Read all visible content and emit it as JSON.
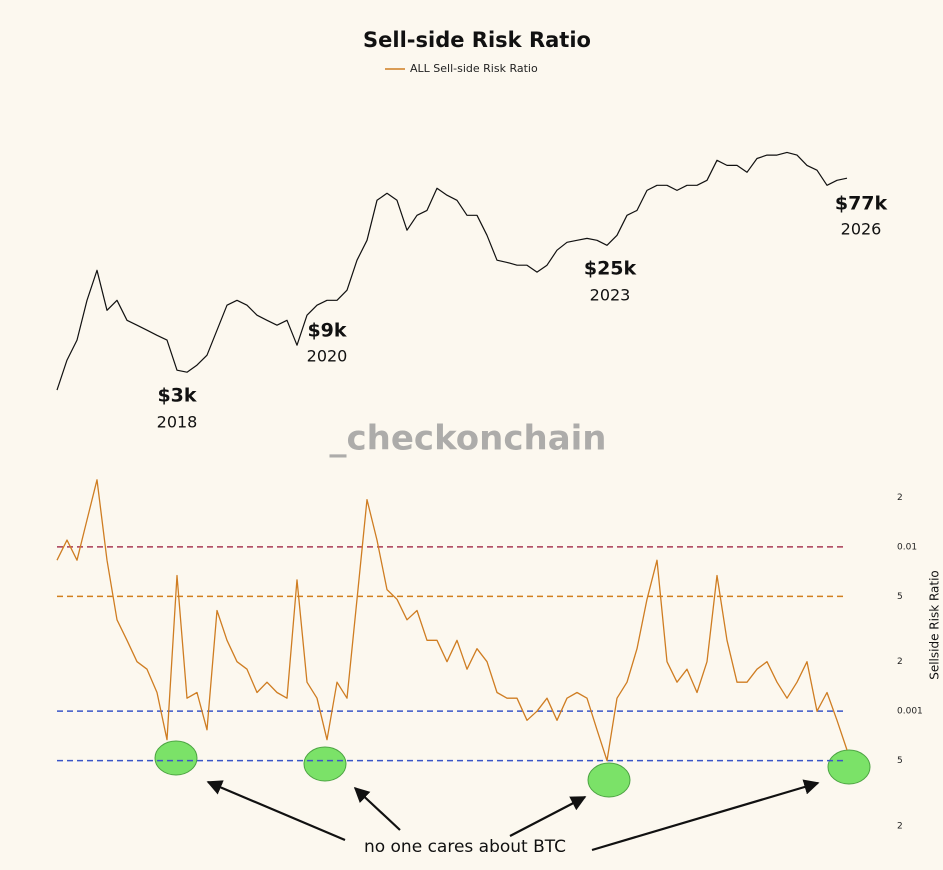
{
  "chart_data": {
    "type": "line",
    "title": "Sell-side Risk Ratio",
    "ylabel": "Sellside Risk Ratio",
    "watermark": "_checkonchain",
    "ylog": true,
    "y2log": true,
    "ylim": [
      0.0002,
      0.04
    ],
    "yticks": [
      {
        "value": 0.02,
        "label": "2"
      },
      0.01,
      {
        "value": 0.005,
        "label": "5"
      },
      {
        "value": 0.002,
        "label": "2"
      },
      0.001,
      {
        "value": 0.0005,
        "label": "5"
      },
      {
        "value": 0.0002,
        "label": "2"
      }
    ],
    "y2lim": [
      1000,
      150000
    ],
    "hlines": [
      {
        "value": 0.01,
        "color": "#a83a55"
      },
      {
        "value": 0.005,
        "color": "#d2801e"
      },
      {
        "value": 0.001,
        "color": "#3a55c8"
      },
      {
        "value": 0.0005,
        "color": "#3a55c8"
      }
    ],
    "annotations": [
      "$3k",
      "2018",
      "$9k",
      "2020",
      "$25k",
      "2023",
      "$77k",
      "2026",
      "no one cares about BTC"
    ],
    "series": [
      {
        "name": "ALL Sell-side Risk Ratio",
        "color": "#cf7d22",
        "values": [
          0.0083,
          0.011,
          0.0083,
          0.0146,
          0.0256,
          0.0083,
          0.0036,
          0.0027,
          0.002,
          0.0018,
          0.0013,
          0.00067,
          0.0067,
          0.0012,
          0.0013,
          0.00077,
          0.0041,
          0.0027,
          0.002,
          0.0018,
          0.0013,
          0.0015,
          0.0013,
          0.0012,
          0.0063,
          0.0015,
          0.0012,
          0.00067,
          0.0015,
          0.0012,
          0.0048,
          0.0194,
          0.011,
          0.0055,
          0.0048,
          0.0036,
          0.0041,
          0.0027,
          0.0027,
          0.002,
          0.0027,
          0.0018,
          0.0024,
          0.002,
          0.0013,
          0.0012,
          0.0012,
          0.00088,
          0.001,
          0.0012,
          0.00088,
          0.0012,
          0.0013,
          0.0012,
          0.00077,
          0.0005,
          0.0012,
          0.0015,
          0.0024,
          0.0048,
          0.0083,
          0.002,
          0.0015,
          0.0018,
          0.0013,
          0.002,
          0.0067,
          0.0027,
          0.0015,
          0.0015,
          0.0018,
          0.002,
          0.0015,
          0.0012,
          0.0015,
          0.002,
          0.001,
          0.0013,
          0.00088,
          0.00058
        ]
      },
      {
        "color": "#111111",
        "axis": "y2",
        "values": [
          2540,
          4120,
          5690,
          10800,
          17500,
          9200,
          10800,
          7830,
          7230,
          6670,
          6150,
          5690,
          3500,
          3390,
          3800,
          4460,
          6670,
          9980,
          10800,
          9980,
          8490,
          7830,
          7230,
          7830,
          5240,
          8490,
          9980,
          10800,
          10800,
          12700,
          20600,
          28400,
          54100,
          60600,
          54100,
          33400,
          42500,
          46000,
          65600,
          58700,
          54100,
          42500,
          42500,
          30800,
          20600,
          19900,
          19000,
          19000,
          17000,
          19000,
          24200,
          27500,
          28400,
          29300,
          28400,
          26200,
          30800,
          42500,
          46000,
          63500,
          68900,
          68900,
          63500,
          68900,
          68900,
          74700,
          103000,
          95000,
          95000,
          84900,
          106000,
          112000,
          112000,
          117000,
          112000,
          95000,
          87800,
          68900,
          74700,
          77200
        ]
      }
    ]
  }
}
